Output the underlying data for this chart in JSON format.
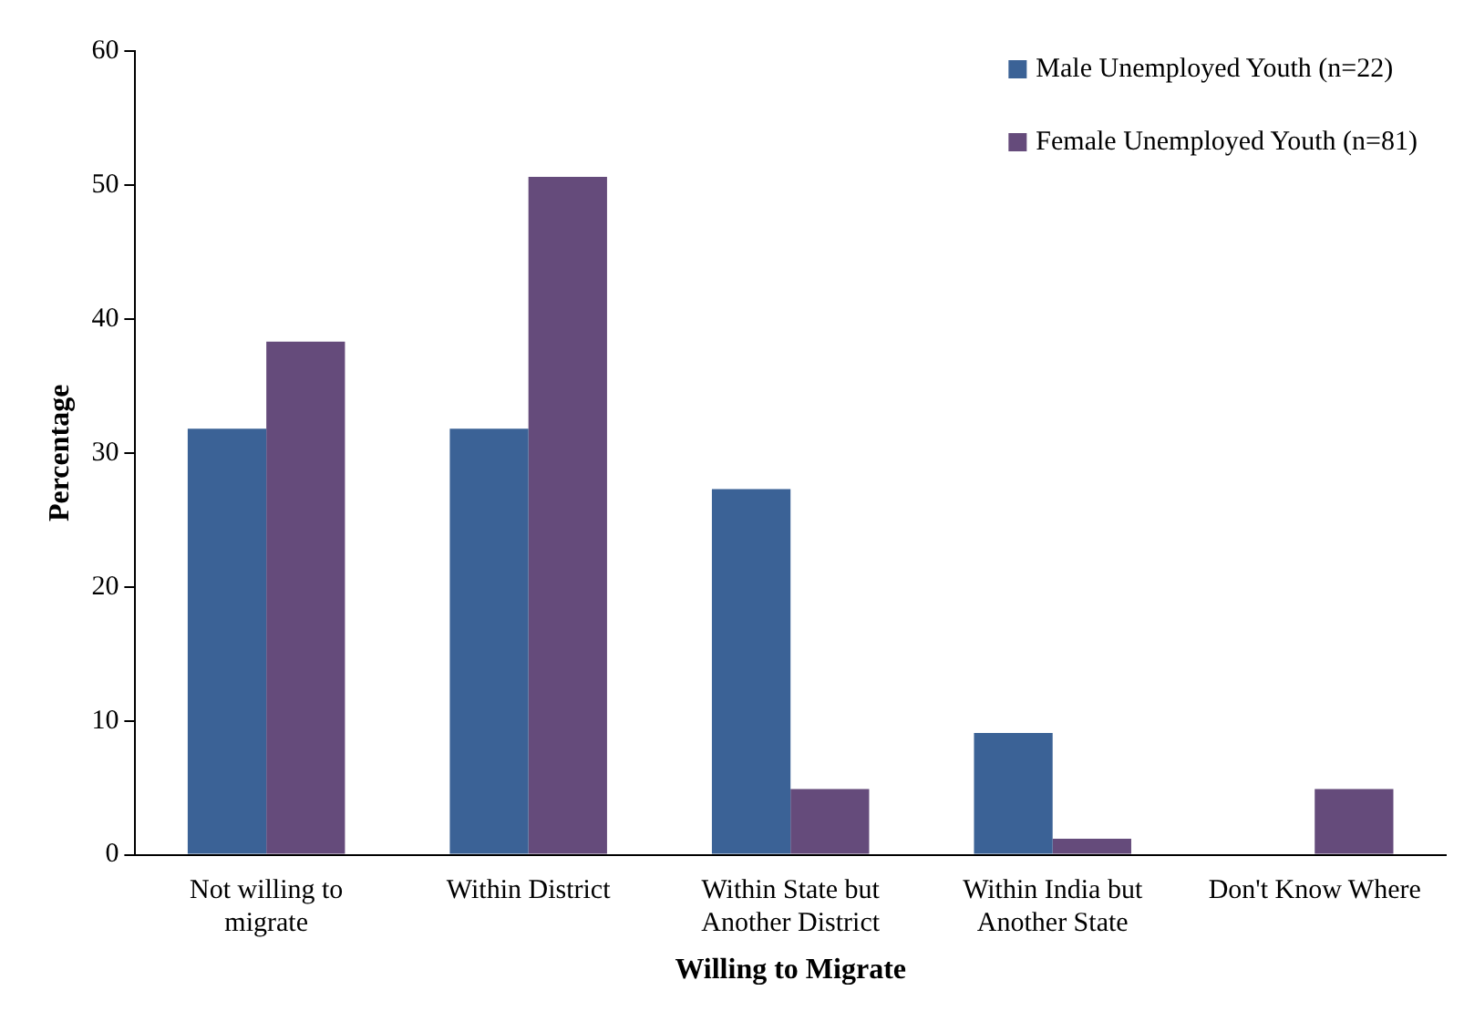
{
  "chart_data": {
    "type": "bar",
    "xlabel": "Willing to Migrate",
    "ylabel": "Percentage",
    "categories": [
      "Not willing to migrate",
      "Within District",
      "Within State but Another District",
      "Within India but Another State",
      "Don't Know Where"
    ],
    "series": [
      {
        "name": "Male Unemployed Youth (n=22)",
        "color": "#3b6296",
        "values": [
          31.8,
          31.8,
          27.3,
          9.1,
          0
        ]
      },
      {
        "name": "Female Unemployed Youth (n=81)",
        "color": "#654b7b",
        "values": [
          38.3,
          50.6,
          4.9,
          1.2,
          4.9
        ]
      }
    ],
    "ylim": [
      0,
      60
    ],
    "yticks": [
      0,
      10,
      20,
      30,
      40,
      50,
      60
    ],
    "grid": false,
    "legend": "top right"
  }
}
